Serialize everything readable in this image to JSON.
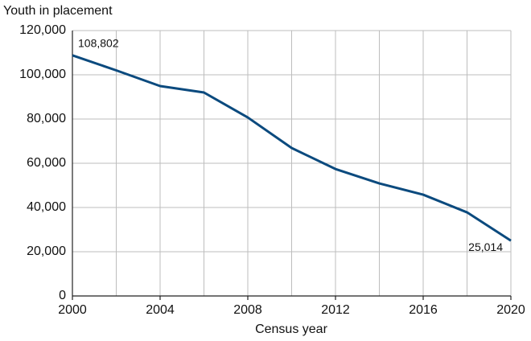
{
  "chart_data": {
    "type": "line",
    "y_axis_label": "Youth in placement",
    "x_axis_label": "Census year",
    "x": [
      2000,
      2002,
      2004,
      2006,
      2008,
      2010,
      2012,
      2014,
      2016,
      2018,
      2020
    ],
    "series": [
      {
        "name": "Youth in placement",
        "color": "#0b4a7e",
        "values": [
          108802,
          102000,
          94900,
          92000,
          80700,
          66900,
          57400,
          50900,
          45800,
          37800,
          25014
        ],
        "value_labels": [
          "108,802",
          null,
          null,
          null,
          null,
          null,
          null,
          null,
          null,
          null,
          "25,014"
        ]
      }
    ],
    "xlim": [
      2000,
      2020
    ],
    "xticks": [
      2000,
      2004,
      2008,
      2012,
      2016,
      2020
    ],
    "xminorticks": [
      2002,
      2006,
      2010,
      2014,
      2018
    ],
    "ylim": [
      0,
      120000
    ],
    "yticks": [
      0,
      {
        "value": 20000,
        "label": "20,000"
      },
      {
        "value": 40000,
        "label": "40,000"
      },
      {
        "value": 60000,
        "label": "60,000"
      },
      {
        "value": 80000,
        "label": "80,000"
      },
      {
        "value": 100000,
        "label": "100,000"
      },
      {
        "value": 120000,
        "label": "120,000"
      }
    ],
    "grid": true,
    "legend": false
  }
}
